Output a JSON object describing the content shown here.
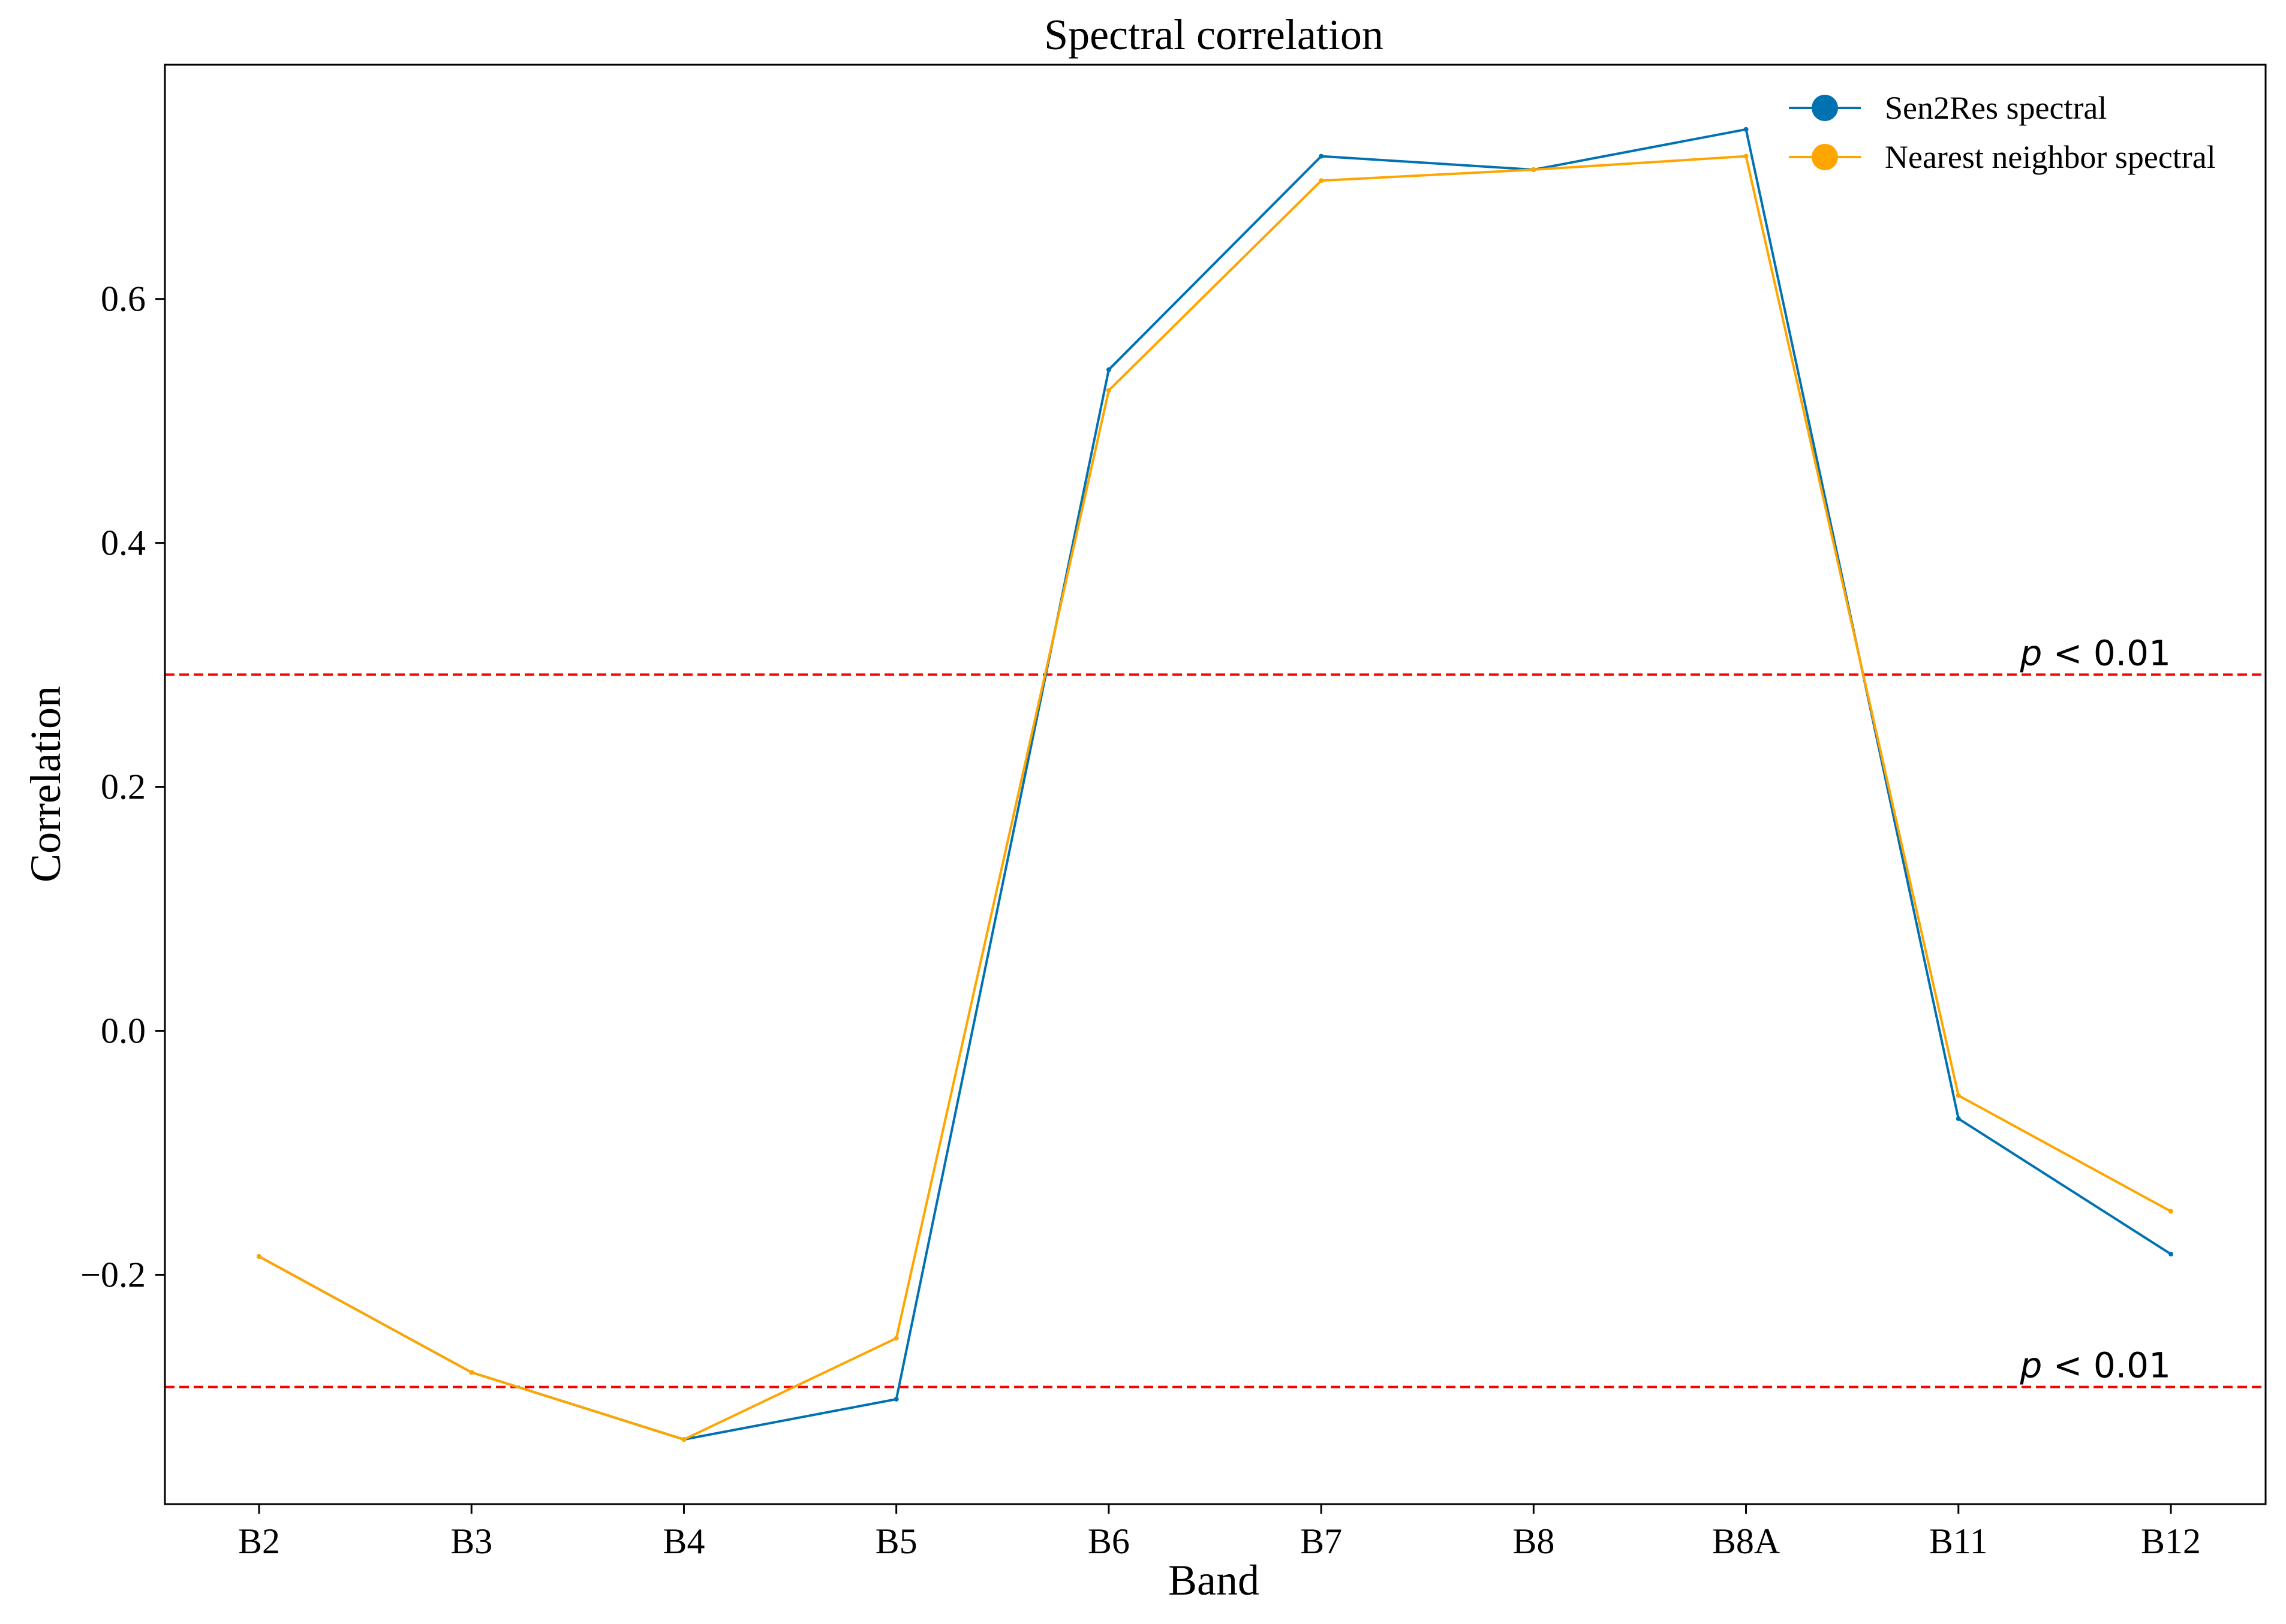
{
  "chart_data": {
    "type": "line",
    "title": "Spectral correlation",
    "xlabel": "Band",
    "ylabel": "Correlation",
    "categories": [
      "B2",
      "B3",
      "B4",
      "B5",
      "B6",
      "B7",
      "B8",
      "B8A",
      "B11",
      "B12"
    ],
    "ylim": [
      -0.388,
      0.792
    ],
    "yticks": [
      -0.2,
      0.0,
      0.2,
      0.4,
      0.6
    ],
    "ytick_labels": [
      "−0.2",
      "0.0",
      "0.2",
      "0.4",
      "0.6"
    ],
    "grid": false,
    "legend_position": "top-right",
    "series": [
      {
        "name": "Sen2Res spectral",
        "color": "#0072b2",
        "values": [
          -0.185,
          -0.28,
          -0.335,
          -0.302,
          0.542,
          0.717,
          0.706,
          0.739,
          -0.072,
          -0.183
        ]
      },
      {
        "name": "Nearest neighbor spectral",
        "color": "#ffa500",
        "values": [
          -0.185,
          -0.28,
          -0.335,
          -0.252,
          0.525,
          0.697,
          0.706,
          0.717,
          -0.053,
          -0.148
        ]
      }
    ],
    "reference_lines": [
      {
        "y": 0.292,
        "label": "p < 0.01",
        "color": "#ff0000"
      },
      {
        "y": -0.292,
        "label": "p < 0.01",
        "color": "#ff0000"
      }
    ]
  }
}
